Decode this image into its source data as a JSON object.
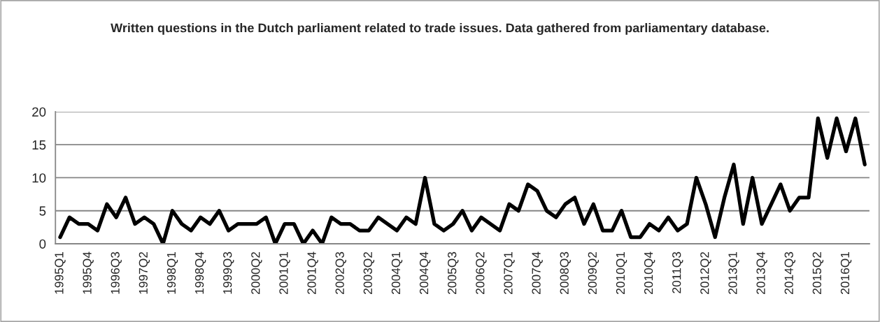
{
  "chart_data": {
    "type": "line",
    "title": "Written questions in the Dutch parliament related to trade issues. Data gathered from parliamentary database.",
    "categories": [
      "1995Q1",
      null,
      null,
      "1995Q4",
      null,
      null,
      "1996Q3",
      null,
      null,
      "1997Q2",
      null,
      null,
      "1998Q1",
      null,
      null,
      "1998Q4",
      null,
      null,
      "1999Q3",
      null,
      null,
      "2000Q2",
      null,
      null,
      "2001Q1",
      null,
      null,
      "2001Q4",
      null,
      null,
      "2002Q3",
      null,
      null,
      "2003Q2",
      null,
      null,
      "2004Q1",
      null,
      null,
      "2004Q4",
      null,
      null,
      "2005Q3",
      null,
      null,
      "2006Q2",
      null,
      null,
      "2007Q1",
      null,
      null,
      "2007Q4",
      null,
      null,
      "2008Q3",
      null,
      null,
      "2009Q2",
      null,
      null,
      "2010Q1",
      null,
      null,
      "2010Q4",
      null,
      null,
      "2011Q3",
      null,
      null,
      "2012Q2",
      null,
      null,
      "2013Q1",
      null,
      null,
      "2013Q4",
      null,
      null,
      "2014Q3",
      null,
      null,
      "2015Q2",
      null,
      null,
      "2016Q1",
      null,
      null
    ],
    "series": [
      {
        "color": "#000000",
        "values": [
          1,
          4,
          3,
          3,
          2,
          6,
          4,
          7,
          3,
          4,
          3,
          0,
          5,
          3,
          2,
          4,
          3,
          5,
          2,
          3,
          3,
          3,
          4,
          0,
          3,
          3,
          0,
          2,
          0,
          4,
          3,
          3,
          2,
          2,
          4,
          3,
          2,
          4,
          3,
          10,
          3,
          2,
          3,
          5,
          2,
          4,
          3,
          2,
          6,
          5,
          9,
          8,
          5,
          4,
          6,
          7,
          3,
          6,
          2,
          2,
          5,
          1,
          1,
          3,
          2,
          4,
          2,
          3,
          10,
          6,
          1,
          7,
          12,
          3,
          10,
          3,
          6,
          9,
          5,
          7,
          7,
          19,
          13,
          19,
          14,
          19,
          12
        ]
      }
    ],
    "ylim": [
      0,
      20
    ],
    "yticks": [
      0,
      5,
      10,
      15,
      20
    ],
    "grid": "y",
    "legend": false,
    "marker": "none",
    "line_style": "solid"
  }
}
